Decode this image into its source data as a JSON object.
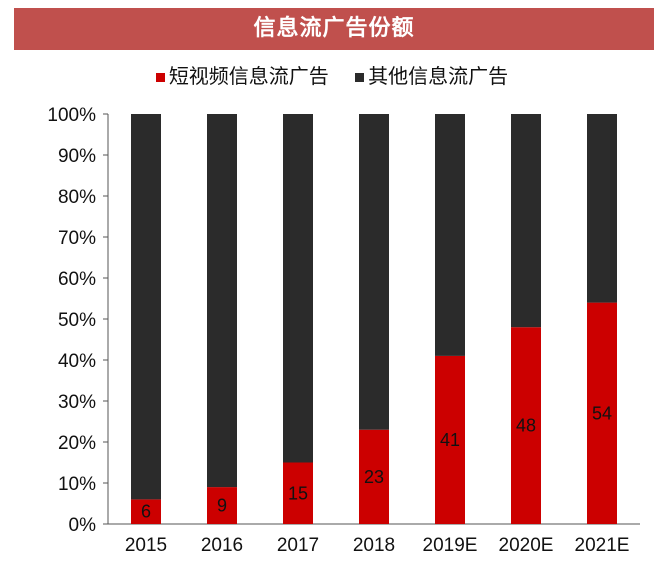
{
  "title": "信息流广告份额",
  "colors": {
    "short_video": "#cc0000",
    "other": "#2b2b2b",
    "title_bg": "#c0504d"
  },
  "chart_data": {
    "type": "bar",
    "stacked": true,
    "percent_stacked": true,
    "title": "信息流广告份额",
    "categories": [
      "2015",
      "2016",
      "2017",
      "2018",
      "2019E",
      "2020E",
      "2021E"
    ],
    "series": [
      {
        "name": "短视频信息流广告",
        "values": [
          6,
          9,
          15,
          23,
          41,
          48,
          54
        ],
        "color": "#cc0000"
      },
      {
        "name": "其他信息流广告",
        "values": [
          94,
          91,
          85,
          77,
          59,
          52,
          46
        ],
        "color": "#2b2b2b"
      }
    ],
    "data_labels": [
      "6",
      "9",
      "15",
      "23",
      "41",
      "48",
      "54"
    ],
    "yticks": [
      "0%",
      "10%",
      "20%",
      "30%",
      "40%",
      "50%",
      "60%",
      "70%",
      "80%",
      "90%",
      "100%"
    ],
    "ylim": [
      0,
      100
    ],
    "grid": false,
    "legend_position": "top"
  }
}
